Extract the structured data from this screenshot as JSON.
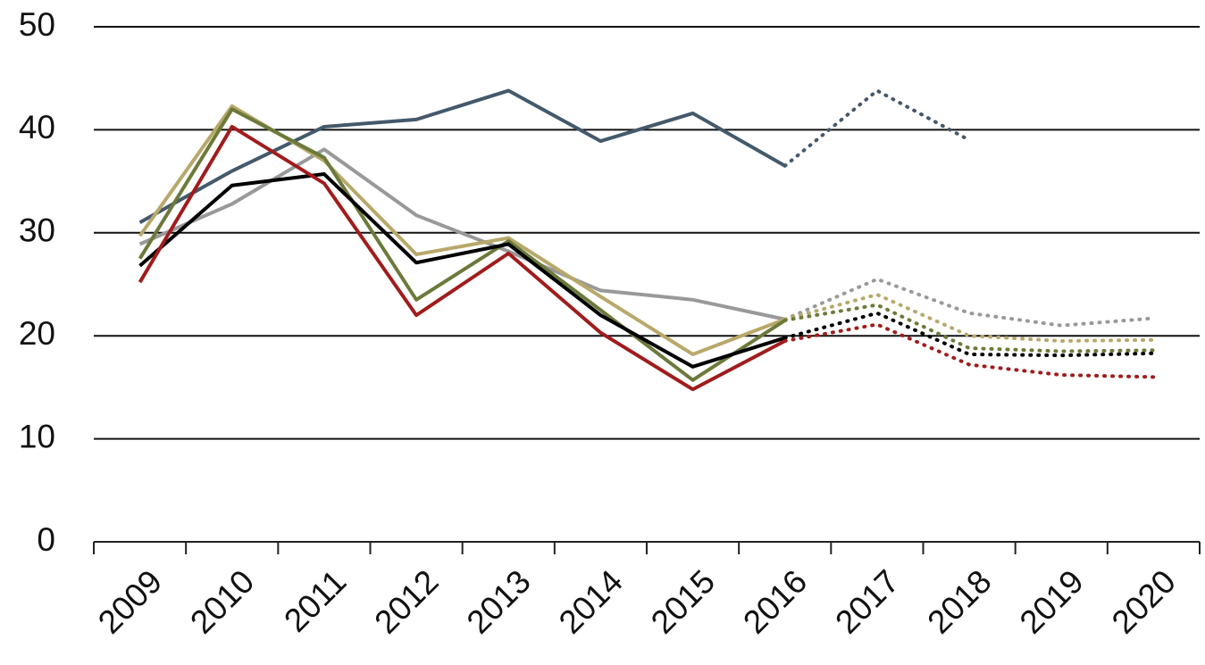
{
  "chart_data": {
    "type": "line",
    "categories": [
      "2009",
      "2010",
      "2011",
      "2012",
      "2013",
      "2014",
      "2015",
      "2016",
      "2017",
      "2018",
      "2019",
      "2020"
    ],
    "series": [
      {
        "color": "#44596b",
        "style": "solid",
        "values": [
          31,
          36,
          40.3,
          41,
          43.8,
          38.9,
          41.6,
          36.5,
          null,
          null,
          null,
          null
        ]
      },
      {
        "color": "#44596b",
        "style": "dotted",
        "values": [
          null,
          null,
          null,
          null,
          null,
          null,
          null,
          36.5,
          43.8,
          39,
          null,
          null
        ]
      },
      {
        "color": "#999999",
        "style": "solid",
        "values": [
          28.9,
          32.8,
          38.1,
          31.7,
          28.2,
          24.4,
          23.5,
          21.6,
          null,
          null,
          null,
          null
        ]
      },
      {
        "color": "#999999",
        "style": "dotted",
        "values": [
          null,
          null,
          null,
          null,
          null,
          null,
          null,
          21.6,
          25.5,
          22.2,
          21,
          21.7
        ]
      },
      {
        "color": "#b8a86a",
        "style": "solid",
        "values": [
          29.7,
          42.3,
          37,
          27.9,
          29.5,
          23.8,
          18.2,
          21.6,
          null,
          null,
          null,
          null
        ]
      },
      {
        "color": "#b8a86a",
        "style": "dotted",
        "values": [
          null,
          null,
          null,
          null,
          null,
          null,
          null,
          21.6,
          24,
          20,
          19.5,
          19.6
        ]
      },
      {
        "color": "#6b7a3a",
        "style": "solid",
        "values": [
          27.5,
          42,
          37.3,
          23.5,
          29.2,
          22.5,
          15.7,
          21.5,
          null,
          null,
          null,
          null
        ]
      },
      {
        "color": "#6b7a3a",
        "style": "dotted",
        "values": [
          null,
          null,
          null,
          null,
          null,
          null,
          null,
          21.5,
          23,
          18.8,
          18.5,
          18.6
        ]
      },
      {
        "color": "#000000",
        "style": "solid",
        "values": [
          26.8,
          34.6,
          35.7,
          27.1,
          28.9,
          22,
          17,
          19.8,
          null,
          null,
          null,
          null
        ]
      },
      {
        "color": "#000000",
        "style": "dotted",
        "values": [
          null,
          null,
          null,
          null,
          null,
          null,
          null,
          19.8,
          22.2,
          18.2,
          18.1,
          18.3
        ]
      },
      {
        "color": "#a01c1c",
        "style": "solid",
        "values": [
          25.2,
          40.3,
          34.8,
          22,
          28,
          20.3,
          14.8,
          19.5,
          null,
          null,
          null,
          null
        ]
      },
      {
        "color": "#a01c1c",
        "style": "dotted",
        "values": [
          null,
          null,
          null,
          null,
          null,
          null,
          null,
          19.5,
          21.1,
          17.2,
          16.2,
          16
        ]
      }
    ],
    "ylim": [
      0,
      50
    ],
    "yticks": [
      0,
      10,
      20,
      30,
      40,
      50
    ],
    "grid": true
  }
}
